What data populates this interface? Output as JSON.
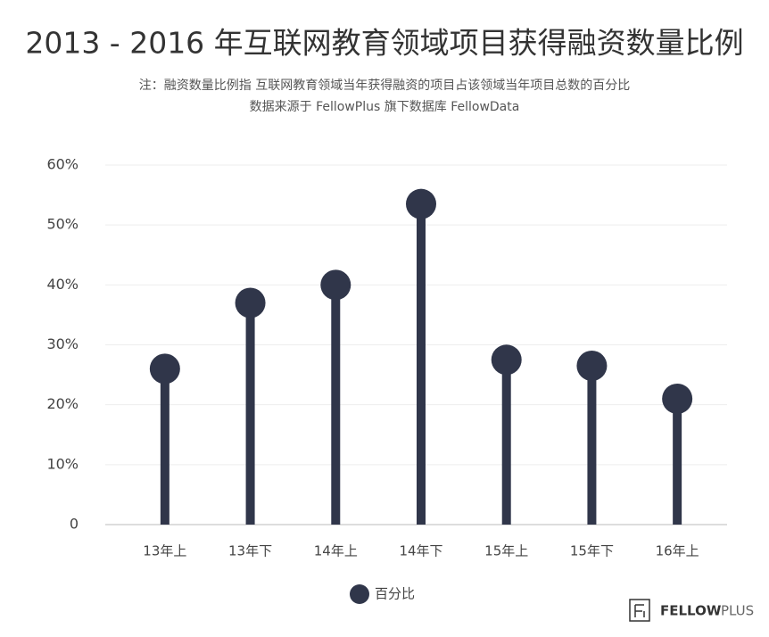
{
  "chart_data": {
    "type": "lollipop",
    "title": "2013 - 2016 年互联网教育领域项目获得融资数量比例",
    "subtitle": [
      "注：融资数量比例指   互联网教育领域当年获得融资的项目占该领域当年项目总数的百分比",
      "数据来源于 FellowPlus 旗下数据库 FellowData"
    ],
    "categories": [
      "13年上",
      "13年下",
      "14年上",
      "14年下",
      "15年上",
      "15年下",
      "16年上"
    ],
    "series": [
      {
        "name": "百分比",
        "color": "#30364a",
        "values": [
          26,
          37,
          40,
          53.5,
          27.5,
          26.5,
          21
        ]
      }
    ],
    "ylim": [
      0,
      60
    ],
    "yticks": [
      0,
      {
        "value": 10,
        "label": "10%"
      },
      {
        "value": 20,
        "label": "20%"
      },
      {
        "value": 30,
        "label": "30%"
      },
      {
        "value": 40,
        "label": "40%"
      },
      {
        "value": 50,
        "label": "50%"
      },
      {
        "value": 60,
        "label": "60%"
      }
    ],
    "grid": true
  },
  "logo": {
    "brand": "FELLOW",
    "suffix": "PLUS"
  }
}
